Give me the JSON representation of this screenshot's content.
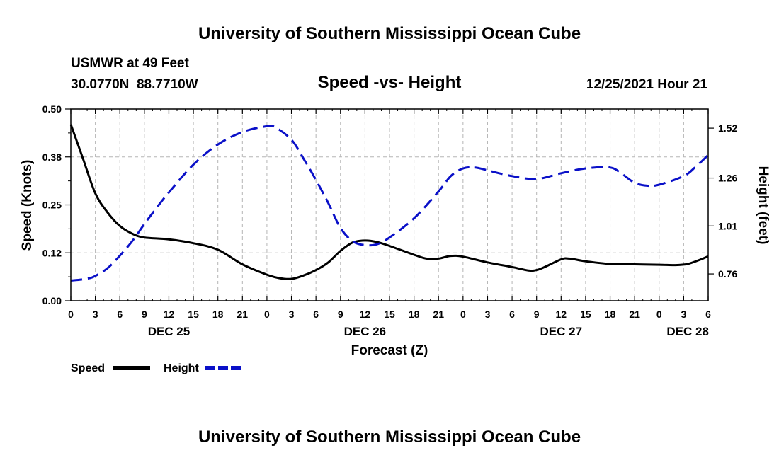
{
  "header": {
    "title_top": "University of Southern Mississippi Ocean Cube",
    "title_bottom": "University of Southern Mississippi Ocean Cube",
    "station": "USMWR at 49 Feet",
    "coords": "30.0770N  88.7710W",
    "subtitle": "Speed -vs- Height",
    "timestamp": "12/25/2021 Hour 21"
  },
  "chart_data": {
    "type": "line",
    "title": "Speed -vs- Height",
    "xlabel": "Forecast (Z)",
    "ylabel": "Speed (Knots)",
    "y2label": "Height (feet)",
    "x_range": [
      0,
      78
    ],
    "xticks": [
      {
        "x": 0,
        "label": "0"
      },
      {
        "x": 3,
        "label": "3"
      },
      {
        "x": 6,
        "label": "6"
      },
      {
        "x": 9,
        "label": "9"
      },
      {
        "x": 12,
        "label": "12"
      },
      {
        "x": 15,
        "label": "15"
      },
      {
        "x": 18,
        "label": "18"
      },
      {
        "x": 21,
        "label": "21"
      },
      {
        "x": 24,
        "label": "0"
      },
      {
        "x": 27,
        "label": "3"
      },
      {
        "x": 30,
        "label": "6"
      },
      {
        "x": 33,
        "label": "9"
      },
      {
        "x": 36,
        "label": "12"
      },
      {
        "x": 39,
        "label": "15"
      },
      {
        "x": 42,
        "label": "18"
      },
      {
        "x": 45,
        "label": "21"
      },
      {
        "x": 48,
        "label": "0"
      },
      {
        "x": 51,
        "label": "3"
      },
      {
        "x": 54,
        "label": "6"
      },
      {
        "x": 57,
        "label": "9"
      },
      {
        "x": 60,
        "label": "12"
      },
      {
        "x": 63,
        "label": "15"
      },
      {
        "x": 66,
        "label": "18"
      },
      {
        "x": 69,
        "label": "21"
      },
      {
        "x": 72,
        "label": "0"
      },
      {
        "x": 75,
        "label": "3"
      },
      {
        "x": 78,
        "label": "6"
      }
    ],
    "day_labels": [
      {
        "x": 12,
        "label": "DEC 25"
      },
      {
        "x": 36,
        "label": "DEC 26"
      },
      {
        "x": 60,
        "label": "DEC 27"
      },
      {
        "x": 75.5,
        "label": "DEC 28"
      }
    ],
    "ylim": [
      0,
      0.5
    ],
    "yticks": [
      {
        "v": 0,
        "label": "0.00"
      },
      {
        "v": 0.125,
        "label": "0.12"
      },
      {
        "v": 0.25,
        "label": "0.25"
      },
      {
        "v": 0.375,
        "label": "0.38"
      },
      {
        "v": 0.5,
        "label": "0.50"
      }
    ],
    "y2lim": [
      0.62,
      1.62
    ],
    "y2ticks": [
      {
        "v": 0.76,
        "label": "0.76"
      },
      {
        "v": 1.01,
        "label": "1.01"
      },
      {
        "v": 1.26,
        "label": "1.26"
      },
      {
        "v": 1.52,
        "label": "1.52"
      }
    ],
    "series": [
      {
        "name": "Speed",
        "axis": "left",
        "color": "#000000",
        "dash": "solid",
        "points": [
          [
            0,
            0.46
          ],
          [
            1.5,
            0.37
          ],
          [
            3,
            0.28
          ],
          [
            4.5,
            0.23
          ],
          [
            6,
            0.195
          ],
          [
            7.5,
            0.175
          ],
          [
            9,
            0.165
          ],
          [
            12,
            0.16
          ],
          [
            15,
            0.15
          ],
          [
            18,
            0.133
          ],
          [
            21,
            0.095
          ],
          [
            24,
            0.068
          ],
          [
            25.5,
            0.059
          ],
          [
            27,
            0.057
          ],
          [
            28.5,
            0.066
          ],
          [
            30,
            0.08
          ],
          [
            31.5,
            0.1
          ],
          [
            33,
            0.13
          ],
          [
            34.5,
            0.152
          ],
          [
            36,
            0.157
          ],
          [
            37.5,
            0.153
          ],
          [
            39,
            0.143
          ],
          [
            42,
            0.12
          ],
          [
            43.5,
            0.11
          ],
          [
            45,
            0.11
          ],
          [
            46.5,
            0.117
          ],
          [
            48,
            0.115
          ],
          [
            51,
            0.1
          ],
          [
            54,
            0.088
          ],
          [
            56,
            0.079
          ],
          [
            57,
            0.08
          ],
          [
            58,
            0.088
          ],
          [
            60,
            0.108
          ],
          [
            61,
            0.11
          ],
          [
            63,
            0.103
          ],
          [
            66,
            0.096
          ],
          [
            69,
            0.095
          ],
          [
            72,
            0.094
          ],
          [
            74,
            0.093
          ],
          [
            75.5,
            0.096
          ],
          [
            77,
            0.107
          ],
          [
            78,
            0.116
          ]
        ]
      },
      {
        "name": "Height",
        "axis": "right",
        "color": "#0a10c8",
        "dash": "dashed",
        "points": [
          [
            0,
            0.725
          ],
          [
            2,
            0.735
          ],
          [
            3,
            0.75
          ],
          [
            4.5,
            0.79
          ],
          [
            6,
            0.855
          ],
          [
            7.5,
            0.93
          ],
          [
            9,
            1.02
          ],
          [
            10.5,
            1.105
          ],
          [
            12,
            1.185
          ],
          [
            15,
            1.33
          ],
          [
            18,
            1.435
          ],
          [
            21,
            1.5
          ],
          [
            24,
            1.53
          ],
          [
            25,
            1.525
          ],
          [
            27,
            1.46
          ],
          [
            28.5,
            1.36
          ],
          [
            30,
            1.25
          ],
          [
            31.5,
            1.13
          ],
          [
            33,
            1.0
          ],
          [
            34.5,
            0.93
          ],
          [
            36,
            0.91
          ],
          [
            37.5,
            0.915
          ],
          [
            39,
            0.95
          ],
          [
            42,
            1.05
          ],
          [
            45,
            1.19
          ],
          [
            46.5,
            1.27
          ],
          [
            48,
            1.31
          ],
          [
            49.5,
            1.315
          ],
          [
            51,
            1.3
          ],
          [
            54,
            1.27
          ],
          [
            57,
            1.255
          ],
          [
            60,
            1.285
          ],
          [
            63,
            1.31
          ],
          [
            66,
            1.315
          ],
          [
            67.5,
            1.28
          ],
          [
            69,
            1.235
          ],
          [
            70.5,
            1.22
          ],
          [
            72,
            1.225
          ],
          [
            75,
            1.27
          ],
          [
            76.5,
            1.32
          ],
          [
            78,
            1.38
          ]
        ]
      }
    ],
    "legend": [
      {
        "name": "Speed",
        "color": "#000000"
      },
      {
        "name": "Height",
        "color": "#0a10c8"
      }
    ]
  }
}
